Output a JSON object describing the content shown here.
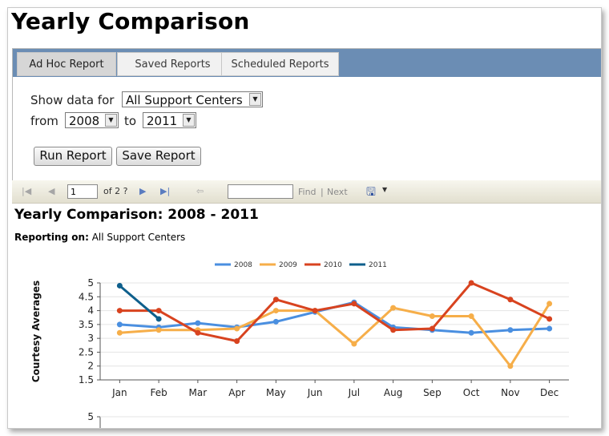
{
  "page": {
    "title": "Yearly Comparison"
  },
  "tabs": [
    {
      "label": "Ad Hoc Report",
      "active": true
    },
    {
      "label": "Saved Reports",
      "active": false
    },
    {
      "label": "Scheduled Reports",
      "active": false
    }
  ],
  "form": {
    "show_label": "Show data for",
    "center_value": "All Support Centers",
    "from_label": "from",
    "from_value": "2008",
    "to_label": "to",
    "to_value": "2011",
    "run_label": "Run Report",
    "save_label": "Save Report"
  },
  "toolbar": {
    "page_value": "1",
    "page_of": "of 2 ?",
    "find_label": "Find",
    "separator": "|",
    "next_label": "Next",
    "icons": [
      "first-page-icon",
      "prev-page-icon",
      "next-page-icon",
      "last-page-icon",
      "back-icon",
      "export-save-icon"
    ]
  },
  "report": {
    "title": "Yearly Comparison:  2008 - 2011",
    "reporting_label": "Reporting on:",
    "reporting_value": "All Support Centers"
  },
  "chart_data": [
    {
      "type": "line",
      "title": "",
      "xlabel": "",
      "ylabel": "Courtesy Averages",
      "categories": [
        "Jan",
        "Feb",
        "Mar",
        "Apr",
        "May",
        "Jun",
        "Jul",
        "Aug",
        "Sep",
        "Oct",
        "Nov",
        "Dec"
      ],
      "ylim": [
        1.5,
        5
      ],
      "yticks": [
        "5",
        "4.5",
        "4",
        "3.5",
        "3",
        "2.5",
        "2",
        "1.5"
      ],
      "legend_position": "top-center",
      "grid": true,
      "series": [
        {
          "name": "2008",
          "color": "#4a8fe0",
          "values": [
            3.5,
            3.4,
            3.55,
            3.4,
            3.6,
            3.95,
            4.3,
            3.4,
            3.3,
            3.2,
            3.3,
            3.35
          ]
        },
        {
          "name": "2009",
          "color": "#f6ae49",
          "values": [
            3.2,
            3.3,
            3.3,
            3.35,
            4.0,
            4.0,
            2.8,
            4.1,
            3.8,
            3.8,
            2.0,
            4.25
          ]
        },
        {
          "name": "2010",
          "color": "#d8431f",
          "values": [
            4.0,
            4.0,
            3.2,
            2.9,
            4.4,
            4.0,
            4.25,
            3.3,
            3.35,
            5.0,
            4.4,
            3.7
          ]
        },
        {
          "name": "2011",
          "color": "#0e5f8c",
          "values": [
            4.9,
            3.7,
            null,
            null,
            null,
            null,
            null,
            null,
            null,
            null,
            null,
            null
          ]
        }
      ]
    },
    {
      "type": "line",
      "title": "",
      "ylabel": "",
      "yticks": [
        "5"
      ],
      "partial": true,
      "series": []
    }
  ]
}
